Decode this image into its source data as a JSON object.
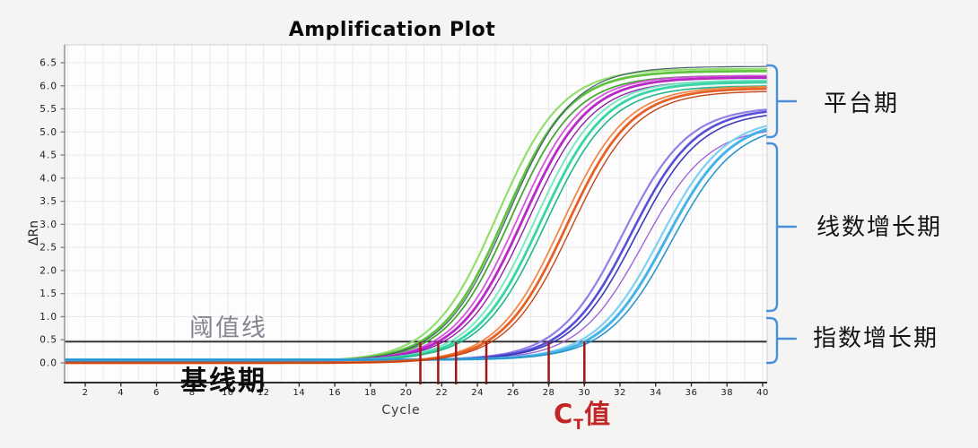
{
  "title": "Amplification Plot",
  "axes": {
    "x_label": "Cycle",
    "y_label": "ΔRn",
    "x_ticks": [
      2,
      4,
      6,
      8,
      10,
      12,
      14,
      16,
      18,
      20,
      22,
      24,
      26,
      28,
      30,
      32,
      34,
      36,
      38,
      40
    ],
    "y_ticks": [
      "0.0",
      "0.5",
      "1.0",
      "1.5",
      "2.0",
      "2.5",
      "3.0",
      "3.5",
      "4.0",
      "4.5",
      "5.0",
      "5.5",
      "6.0",
      "6.5"
    ]
  },
  "threshold": {
    "value": 0.46,
    "label": "阈值线"
  },
  "annotations": {
    "baseline_label": "基线期",
    "ct_c": "C",
    "ct_sub": "T",
    "ct_suffix": "值",
    "phase_plateau": "平台期",
    "phase_linear": "线数增长期",
    "phase_exponential": "指数增长期"
  },
  "colors": {
    "brace": "#4a90d9",
    "ct_marker": "#a21717",
    "threshold_line": "#2b2b2b",
    "axis": "#2e2e2e",
    "grid": "#e9e9ed",
    "plot_bg": "#fdfdfe",
    "page_bg": "#f5f4f2",
    "ct_text": "#c22525"
  },
  "chart_data": {
    "type": "line",
    "title": "Amplification Plot",
    "xlabel": "Cycle",
    "ylabel": "ΔRn",
    "xlim": [
      1,
      40
    ],
    "ylim": [
      0,
      6.5
    ],
    "grid": true,
    "legend": "none",
    "threshold": 0.46,
    "ct_values": [
      20.8,
      21.8,
      22.8,
      24.5,
      28.0,
      30.0
    ],
    "sigmoid_k": 0.55,
    "series": [
      {
        "name": "green-group",
        "ct": 20.8,
        "plateau": 6.32,
        "baseline": 0.03,
        "lines": [
          {
            "color": "#8edc66",
            "dm": -0.45,
            "dp": 0.05,
            "w": 2.2
          },
          {
            "color": "#56c136",
            "dm": 0,
            "dp": 0,
            "w": 2.8
          },
          {
            "color": "#3fa32b",
            "dm": 0.35,
            "dp": -0.1,
            "w": 1.8
          },
          {
            "color": "#41546e",
            "dm": 0.15,
            "dp": 0.1,
            "w": 1.2
          }
        ]
      },
      {
        "name": "magenta-group",
        "ct": 21.8,
        "plateau": 6.18,
        "baseline": 0.04,
        "lines": [
          {
            "color": "#d44ddb",
            "dm": -0.3,
            "dp": 0.04,
            "w": 1.8
          },
          {
            "color": "#b41cc3",
            "dm": 0,
            "dp": 0,
            "w": 2.8
          },
          {
            "color": "#8c14a6",
            "dm": 0.3,
            "dp": -0.07,
            "w": 1.4
          }
        ]
      },
      {
        "name": "spring-green-group",
        "ct": 22.8,
        "plateau": 6.08,
        "baseline": 0.05,
        "lines": [
          {
            "color": "#74e8c0",
            "dm": -0.35,
            "dp": 0.04,
            "w": 2.0
          },
          {
            "color": "#2dd3a0",
            "dm": 0,
            "dp": 0,
            "w": 2.8
          },
          {
            "color": "#17b386",
            "dm": 0.3,
            "dp": -0.08,
            "w": 1.6
          }
        ]
      },
      {
        "name": "blue-violet-group",
        "ct": 28.0,
        "plateau": 5.52,
        "baseline": 0.06,
        "lines": [
          {
            "color": "#8d77e8",
            "dm": -0.45,
            "dp": 0.03,
            "w": 2.2
          },
          {
            "color": "#4f46d6",
            "dm": 0,
            "dp": 0,
            "w": 2.6
          },
          {
            "color": "#3230b4",
            "dm": 0.3,
            "dp": -0.07,
            "w": 1.6
          },
          {
            "color": "#9a5fd6",
            "dm": 0.85,
            "dp": -0.4,
            "w": 1.4
          }
        ]
      },
      {
        "name": "sky-blue-group",
        "ct": 30.0,
        "plateau": 5.28,
        "baseline": 0.07,
        "lines": [
          {
            "color": "#79cdf2",
            "dm": -0.35,
            "dp": 0.04,
            "w": 2.2
          },
          {
            "color": "#3cb0e6",
            "dm": 0,
            "dp": 0,
            "w": 3.0
          },
          {
            "color": "#2592c6",
            "dm": 0.35,
            "dp": -0.08,
            "w": 1.6
          }
        ]
      },
      {
        "name": "orange-group",
        "ct": 24.5,
        "plateau": 5.95,
        "baseline": 0.0,
        "lines": [
          {
            "color": "#f0823f",
            "dm": -0.3,
            "dp": 0.04,
            "w": 1.8
          },
          {
            "color": "#e5581a",
            "dm": 0,
            "dp": 0,
            "w": 2.8
          },
          {
            "color": "#bf3f10",
            "dm": 0.3,
            "dp": -0.06,
            "w": 1.4
          }
        ]
      }
    ]
  }
}
